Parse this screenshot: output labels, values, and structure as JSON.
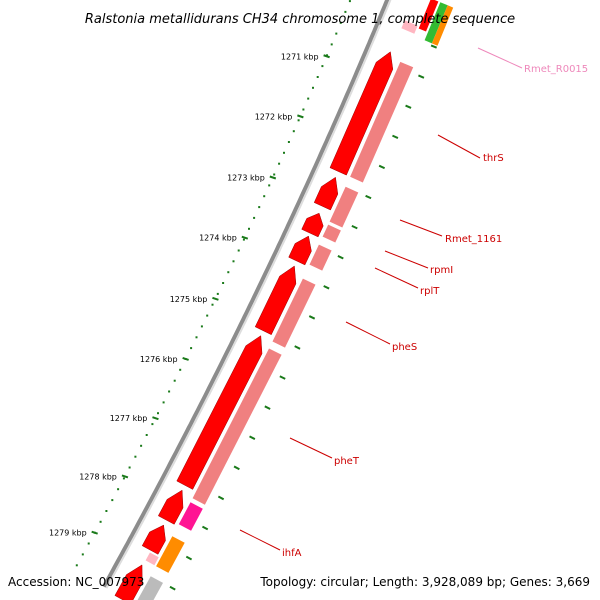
{
  "title": "Ralstonia metallidurans CH34 chromosome 1, complete sequence",
  "footer": {
    "accession": "Accession: NC_007973",
    "summary": "Topology: circular; Length: 3,928,089 bp; Genes: 3,669"
  },
  "colors": {
    "backbone": "#8c8c8c",
    "tick": "#1a7a1a",
    "gene_strong": "#ff0000",
    "gene_light": "#f08080",
    "gene_magenta": "#ff1493",
    "gene_orange": "#ff8c00",
    "gene_pink": "#ffb6c1",
    "gene_gray": "#bbbbbb",
    "label_red": "#cc0000",
    "label_pink": "#ee88bb"
  },
  "ticks": {
    "labels": [
      "1271 kbp",
      "1272 kbp",
      "1273 kbp",
      "1274 kbp",
      "1275 kbp",
      "1276 kbp",
      "1277 kbp",
      "1278 kbp",
      "1279 kbp"
    ]
  },
  "genes": [
    {
      "name": "Rmet_R0015",
      "color": "label_pink"
    },
    {
      "name": "thrS",
      "color": "label_red"
    },
    {
      "name": "Rmet_1161",
      "color": "label_red"
    },
    {
      "name": "rpmI",
      "color": "label_red"
    },
    {
      "name": "rplT",
      "color": "label_red"
    },
    {
      "name": "pheS",
      "color": "label_red"
    },
    {
      "name": "pheT",
      "color": "label_red"
    },
    {
      "name": "ihfA",
      "color": "label_red"
    }
  ]
}
